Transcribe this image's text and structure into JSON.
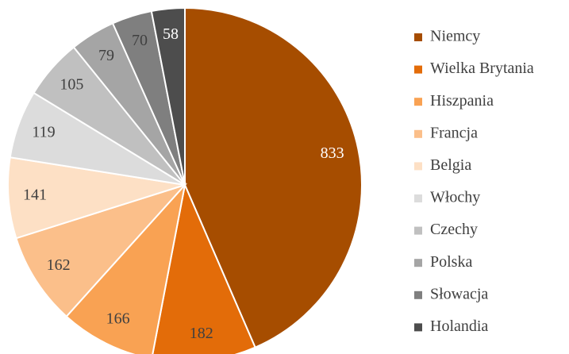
{
  "chart_data": {
    "type": "pie",
    "categories": [
      "Niemcy",
      "Wielka Brytania",
      "Hiszpania",
      "Francja",
      "Belgia",
      "Włochy",
      "Czechy",
      "Polska",
      "Słowacja",
      "Holandia"
    ],
    "values": [
      833,
      182,
      166,
      162,
      141,
      119,
      105,
      79,
      70,
      58
    ],
    "colors": [
      "#a64d00",
      "#e36c09",
      "#f9a253",
      "#fbbf8a",
      "#fde0c5",
      "#dcdcdc",
      "#c0c0c0",
      "#a5a5a5",
      "#7f7f7f",
      "#4d4d4d"
    ],
    "legend": "right"
  }
}
